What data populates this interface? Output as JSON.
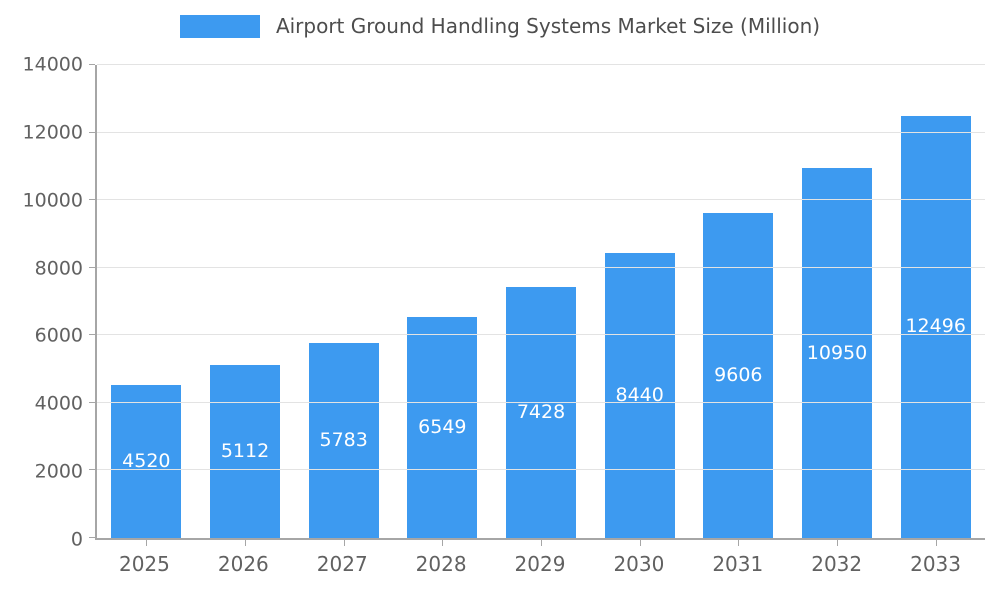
{
  "legend": {
    "label": "Airport Ground Handling Systems Market Size (Million)"
  },
  "colors": {
    "bar": "#3d9af0",
    "value_label": "#ffffff",
    "axis_line": "#a6a6a6",
    "gridline": "#e3e3e3",
    "tick_text": "#616161",
    "title_text": "#4d4d4d",
    "background": "#ffffff"
  },
  "chart_data": {
    "type": "bar",
    "title": "Airport Ground Handling Systems Market Size (Million)",
    "categories": [
      "2025",
      "2026",
      "2027",
      "2028",
      "2029",
      "2030",
      "2031",
      "2032",
      "2033"
    ],
    "values": [
      4520,
      5112,
      5783,
      6549,
      7428,
      8440,
      9606,
      10950,
      12496
    ],
    "xlabel": "",
    "ylabel": "",
    "ylim": [
      0,
      14000
    ],
    "yticks": [
      0,
      2000,
      4000,
      6000,
      8000,
      10000,
      12000,
      14000
    ],
    "grid": true,
    "legend_position": "top",
    "value_labels": "inside-center"
  }
}
